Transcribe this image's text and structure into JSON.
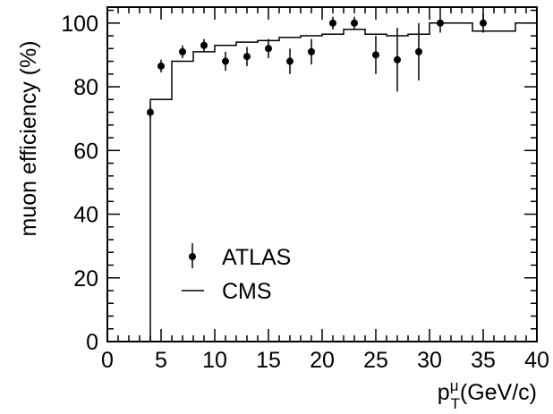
{
  "chart_data": {
    "type": "scatter",
    "title": "",
    "xlabel": {
      "base": "p",
      "sup": "μ",
      "sub": "T",
      "unit": "(GeV/c)"
    },
    "ylabel": "muon efficiency (%)",
    "xlim": [
      0,
      40
    ],
    "ylim": [
      0,
      105
    ],
    "xticks": [
      0,
      5,
      10,
      15,
      20,
      25,
      30,
      35,
      40
    ],
    "yticks": [
      0,
      20,
      40,
      60,
      80,
      100
    ],
    "xtick_labels": [
      "0",
      "5",
      "10",
      "15",
      "20",
      "25",
      "30",
      "35",
      "40"
    ],
    "ytick_labels": [
      "0",
      "20",
      "40",
      "60",
      "80",
      "100"
    ],
    "grid": false,
    "legend_position": "bottom-left",
    "series": [
      {
        "name": "ATLAS",
        "kind": "points-with-errorbars",
        "color": "#000000",
        "points": [
          {
            "x": 4,
            "y": 72,
            "err": 2
          },
          {
            "x": 5,
            "y": 86.5,
            "err": 2
          },
          {
            "x": 7,
            "y": 91,
            "err": 2
          },
          {
            "x": 9,
            "y": 93,
            "err": 2
          },
          {
            "x": 11,
            "y": 88,
            "err": 3
          },
          {
            "x": 13,
            "y": 89.5,
            "err": 3
          },
          {
            "x": 15,
            "y": 92,
            "err": 3
          },
          {
            "x": 17,
            "y": 88,
            "err": 4
          },
          {
            "x": 19,
            "y": 91,
            "err": 4
          },
          {
            "x": 21,
            "y": 100,
            "err": 2
          },
          {
            "x": 23,
            "y": 100,
            "err": 2
          },
          {
            "x": 25,
            "y": 90,
            "err": 6
          },
          {
            "x": 27,
            "y": 88.5,
            "err": 10
          },
          {
            "x": 29,
            "y": 91,
            "err": 9
          },
          {
            "x": 31,
            "y": 100,
            "err": 3
          },
          {
            "x": 35,
            "y": 100,
            "err": 3
          }
        ]
      },
      {
        "name": "CMS",
        "kind": "step-histogram",
        "color": "#000000",
        "edges": [
          4,
          4.5,
          6,
          8,
          10,
          12,
          14,
          16,
          18,
          20,
          22,
          24,
          26,
          28,
          30,
          34,
          38,
          40
        ],
        "values": [
          76,
          76,
          88,
          91,
          93,
          94,
          94.5,
          95.5,
          96,
          96.5,
          98,
          96.5,
          96,
          96.5,
          100,
          97.5,
          100
        ]
      }
    ]
  }
}
